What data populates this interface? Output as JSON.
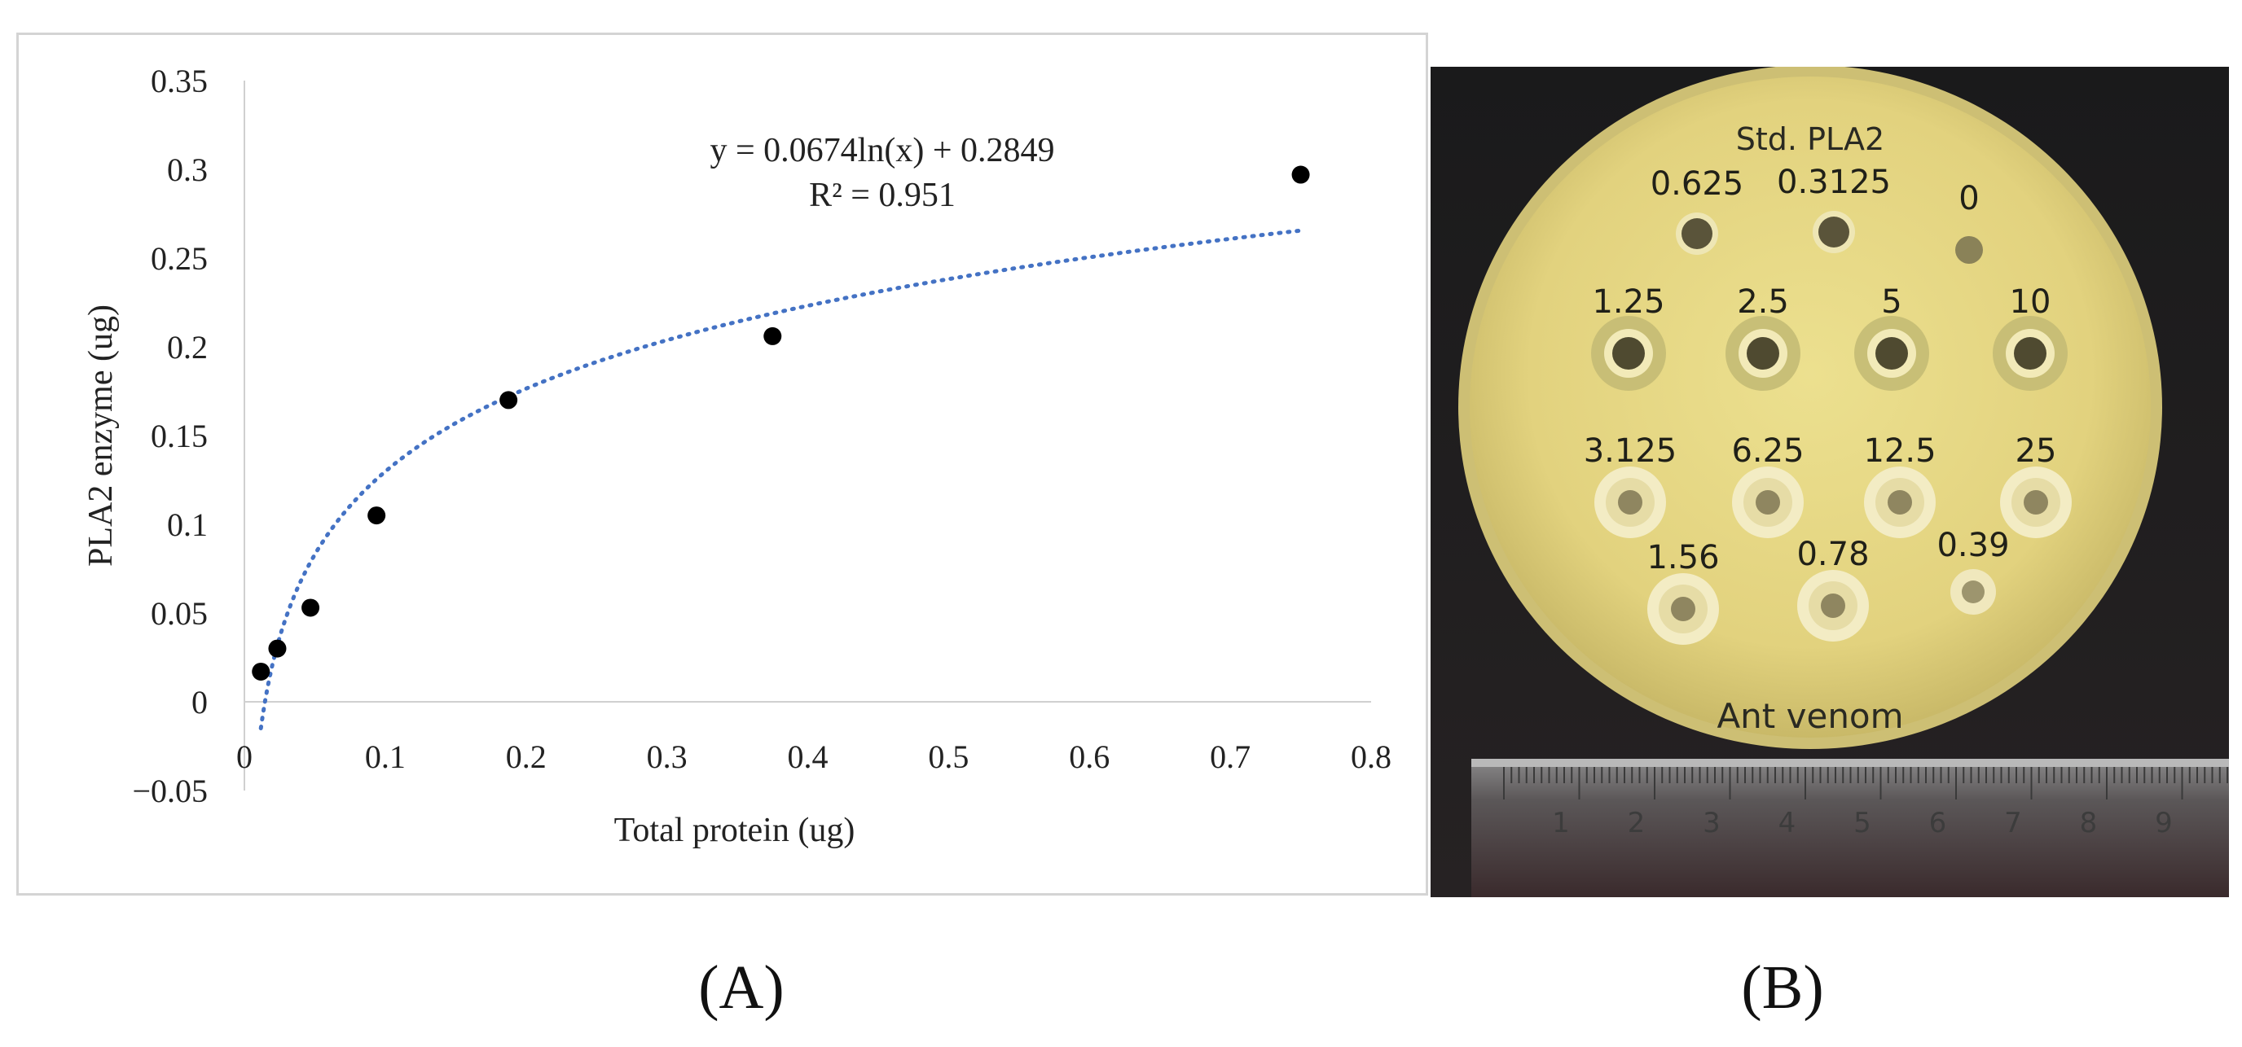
{
  "chart_data": {
    "type": "scatter",
    "title": "",
    "xlabel": "Total protein (ug)",
    "ylabel": "PLA2 enzyme (ug)",
    "xlim": [
      0,
      0.8
    ],
    "ylim": [
      -0.05,
      0.35
    ],
    "x_ticks": [
      "0",
      "0.1",
      "0.2",
      "0.3",
      "0.4",
      "0.5",
      "0.6",
      "0.7",
      "0.8"
    ],
    "y_ticks": [
      "−0.05",
      "0",
      "0.05",
      "0.1",
      "0.15",
      "0.2",
      "0.25",
      "0.3",
      "0.35"
    ],
    "grid": false,
    "points": {
      "x": [
        0.0117,
        0.0234,
        0.0469,
        0.0938,
        0.1875,
        0.375,
        0.75
      ],
      "y": [
        0.017,
        0.03,
        0.053,
        0.105,
        0.17,
        0.206,
        0.297
      ]
    },
    "trendline": {
      "type": "logarithmic",
      "a": 0.0674,
      "b": 0.2849,
      "x_range": [
        0.0117,
        0.75
      ],
      "color": "#4472c4",
      "style": "dotted"
    },
    "equation_text": "y = 0.0674ln(x) + 0.2849",
    "r2_text": "R² = 0.951",
    "point_color": "#000000"
  },
  "photo": {
    "plate_title": "Std. PLA2",
    "plate_footer": "Ant venom",
    "wells": [
      {
        "label": "0.625",
        "type": "dark"
      },
      {
        "label": "0.3125",
        "type": "dark"
      },
      {
        "label": "0",
        "type": "blank"
      },
      {
        "label": "1.25",
        "type": "ring"
      },
      {
        "label": "2.5",
        "type": "ring"
      },
      {
        "label": "5",
        "type": "ring"
      },
      {
        "label": "10",
        "type": "ring"
      },
      {
        "label": "3.125",
        "type": "halo"
      },
      {
        "label": "6.25",
        "type": "halo"
      },
      {
        "label": "12.5",
        "type": "halo"
      },
      {
        "label": "25",
        "type": "halo"
      },
      {
        "label": "1.56",
        "type": "halo"
      },
      {
        "label": "0.78",
        "type": "halo"
      },
      {
        "label": "0.39",
        "type": "small"
      }
    ],
    "ruler_numbers": [
      "1",
      "2",
      "3",
      "4",
      "5",
      "6",
      "7",
      "8",
      "9",
      "1"
    ],
    "plate_color": "#e4d68a",
    "background_color": "#1b1b1c"
  },
  "panel_labels": {
    "a": "(A)",
    "b": "(B)"
  }
}
